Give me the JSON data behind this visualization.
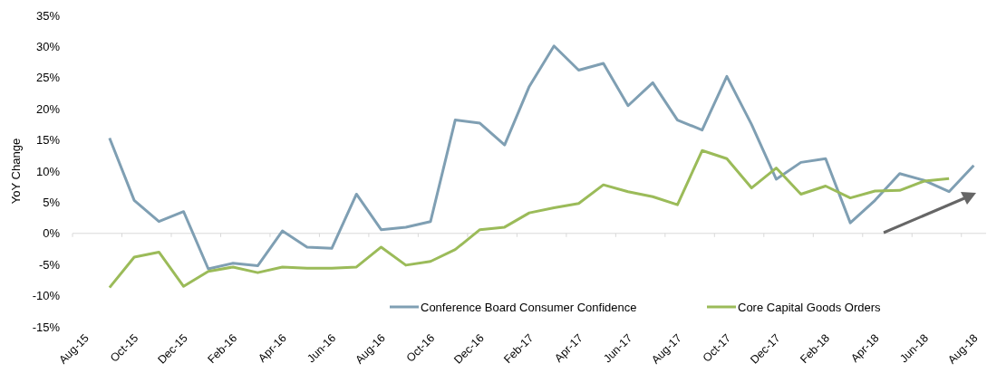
{
  "chart_data": {
    "type": "line",
    "ylabel": "YoY Change",
    "categories": [
      "Aug-15",
      null,
      "Oct-15",
      null,
      "Dec-15",
      null,
      "Feb-16",
      null,
      "Apr-16",
      null,
      "Jun-16",
      null,
      "Aug-16",
      null,
      "Oct-16",
      null,
      "Dec-16",
      null,
      "Feb-17",
      null,
      "Apr-17",
      null,
      "Jun-17",
      null,
      "Aug-17",
      null,
      "Oct-17",
      null,
      "Dec-17",
      null,
      "Feb-18",
      null,
      "Apr-18",
      null,
      "Jun-18",
      null,
      "Aug-18"
    ],
    "series": [
      {
        "name": "Conference Board Consumer Confidence",
        "color": "#7f9fb3",
        "values": [
          null,
          15.3,
          5.3,
          1.9,
          3.5,
          -5.7,
          -4.8,
          -5.2,
          0.4,
          -2.2,
          -2.4,
          6.3,
          0.6,
          1.0,
          1.9,
          18.2,
          17.7,
          14.2,
          23.6,
          30.1,
          26.2,
          27.3,
          20.5,
          24.2,
          18.2,
          16.6,
          25.2,
          17.5,
          8.7,
          11.4,
          12.0,
          1.7,
          5.3,
          9.6,
          8.5,
          6.7,
          10.9
        ]
      },
      {
        "name": "Core Capital Goods Orders",
        "color": "#9bbb59",
        "values": [
          null,
          -8.7,
          -3.8,
          -3.0,
          -8.5,
          -6.1,
          -5.4,
          -6.3,
          -5.4,
          -5.6,
          -5.6,
          -5.4,
          -2.2,
          -5.1,
          -4.5,
          -2.6,
          0.6,
          1.0,
          3.3,
          4.1,
          4.8,
          7.8,
          6.7,
          5.9,
          4.6,
          13.3,
          12.0,
          7.3,
          10.5,
          6.3,
          7.6,
          5.7,
          6.8,
          6.9,
          8.4,
          8.8,
          null
        ]
      }
    ],
    "ylim": [
      -15,
      35
    ],
    "yticks": [
      {
        "value": -15,
        "label": "-15%"
      },
      {
        "value": -10,
        "label": "-10%"
      },
      {
        "value": -5,
        "label": "-5%"
      },
      {
        "value": 0,
        "label": "0%"
      },
      {
        "value": 5,
        "label": "5%"
      },
      {
        "value": 10,
        "label": "10%"
      },
      {
        "value": 15,
        "label": "15%"
      },
      {
        "value": 20,
        "label": "20%"
      },
      {
        "value": 25,
        "label": "25%"
      },
      {
        "value": 30,
        "label": "30%"
      },
      {
        "value": 35,
        "label": "35%"
      }
    ],
    "legend": "bottom",
    "marker": "none",
    "line_style": "solid"
  }
}
